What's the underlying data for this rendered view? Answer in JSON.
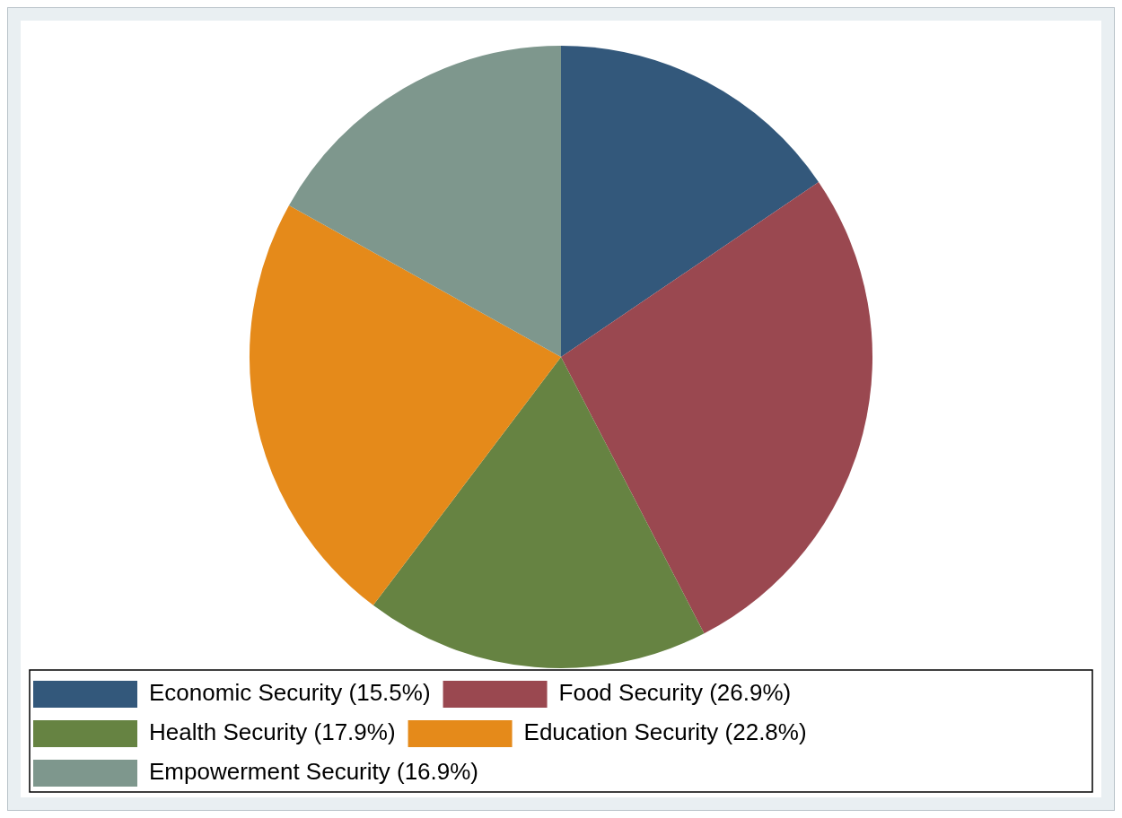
{
  "chart_data": {
    "type": "pie",
    "categories": [
      "Economic Security (15.5%)",
      "Food Security (26.9%)",
      "Health Security (17.9%)",
      "Education Security (22.8%)",
      "Empowerment Security (16.9%)"
    ],
    "values": [
      15.5,
      26.9,
      17.9,
      22.8,
      16.9
    ],
    "colors": [
      "#33587b",
      "#9a4850",
      "#668342",
      "#e58a1a",
      "#7e978d"
    ],
    "legend": "bottom"
  }
}
